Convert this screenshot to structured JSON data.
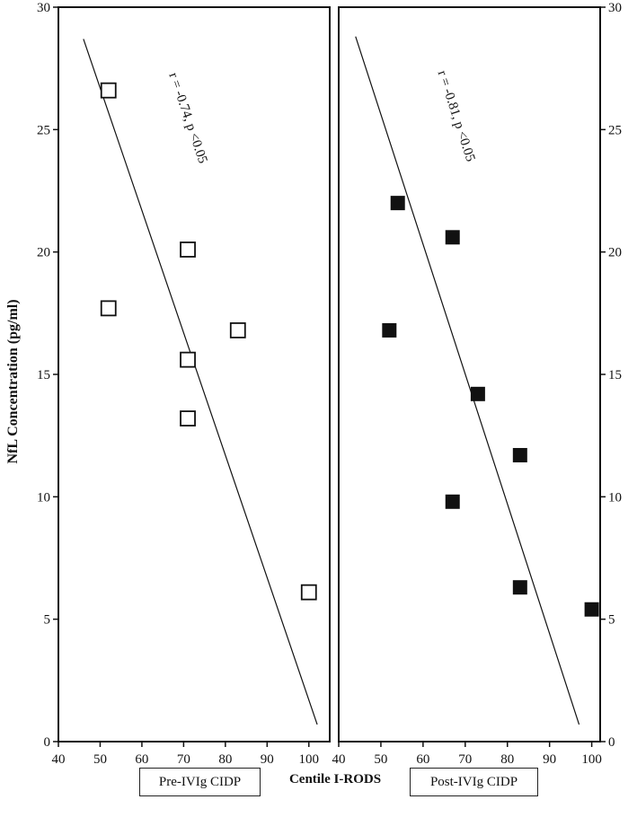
{
  "figure": {
    "xlabel": "Centile I-RODS",
    "ylabel": "NfL Concentration (pg/ml)"
  },
  "legend": {
    "pre_label": "Pre-IVIg CIDP",
    "post_label": "Post-IVIg CIDP"
  },
  "chart_data": [
    {
      "type": "scatter",
      "series": [
        {
          "name": "Pre-IVIg CIDP",
          "marker": "open-square",
          "points": [
            {
              "x": 52,
              "y": 26.6
            },
            {
              "x": 52,
              "y": 17.7
            },
            {
              "x": 71,
              "y": 20.1
            },
            {
              "x": 71,
              "y": 15.6
            },
            {
              "x": 71,
              "y": 13.2
            },
            {
              "x": 83,
              "y": 16.8
            },
            {
              "x": 100,
              "y": 6.1
            }
          ]
        }
      ],
      "regression": {
        "x1": 46,
        "y1": 28.7,
        "x2": 102,
        "y2": 0.7
      },
      "annotation": "r = -0.74, p <0.05",
      "xlim": [
        40,
        105
      ],
      "ylim": [
        0,
        30
      ],
      "xticks": [
        40,
        50,
        60,
        70,
        80,
        90,
        100
      ],
      "yticks": [
        0,
        5,
        10,
        15,
        20,
        25,
        30
      ],
      "yaxis_side": "left",
      "xlabel": "Centile I-RODS",
      "ylabel": "NfL Concentration (pg/ml)",
      "grid": false,
      "legend_position": "bottom-left"
    },
    {
      "type": "scatter",
      "series": [
        {
          "name": "Post-IVIg CIDP",
          "marker": "filled-square",
          "color": "#111111",
          "points": [
            {
              "x": 54,
              "y": 22.0
            },
            {
              "x": 52,
              "y": 16.8
            },
            {
              "x": 67,
              "y": 20.6
            },
            {
              "x": 67,
              "y": 9.8
            },
            {
              "x": 73,
              "y": 14.2
            },
            {
              "x": 83,
              "y": 11.7
            },
            {
              "x": 83,
              "y": 6.3
            },
            {
              "x": 100,
              "y": 5.4
            }
          ]
        }
      ],
      "regression": {
        "x1": 44,
        "y1": 28.8,
        "x2": 97,
        "y2": 0.7
      },
      "annotation": "r = -0.81, p <0.05",
      "xlim": [
        40,
        102
      ],
      "ylim": [
        0,
        30
      ],
      "xticks": [
        40,
        50,
        60,
        70,
        80,
        90,
        100
      ],
      "yticks": [
        0,
        5,
        10,
        15,
        20,
        25,
        30
      ],
      "yaxis_side": "right",
      "xlabel": "Centile I-RODS",
      "grid": false,
      "legend_position": "bottom-right"
    }
  ]
}
